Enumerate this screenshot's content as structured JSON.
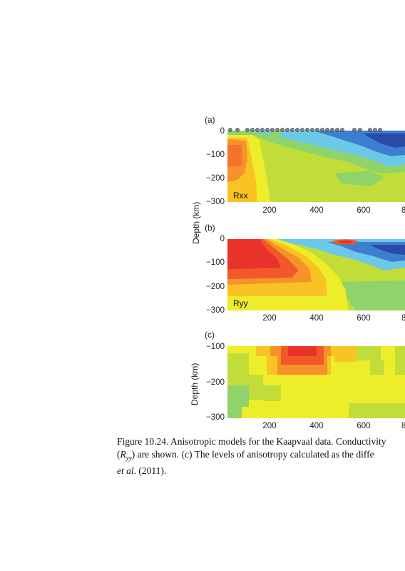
{
  "panels": [
    {
      "label": "(a)",
      "inner_label": "Rxx",
      "y_ticks": [
        "0",
        "−100",
        "−200",
        "−300"
      ],
      "x_ticks": [
        "200",
        "400",
        "600",
        "8"
      ]
    },
    {
      "label": "(b)",
      "inner_label": "Ryy",
      "y_ticks": [
        "0",
        "−100",
        "−200",
        "−300"
      ],
      "x_ticks": [
        "200",
        "400",
        "600",
        "8"
      ]
    },
    {
      "label": "(c)",
      "inner_label": "",
      "y_ticks": [
        "−100",
        "−200",
        "−300"
      ],
      "x_ticks": [
        "200",
        "400",
        "600",
        "8"
      ]
    }
  ],
  "ylabel": "Depth (km)",
  "caption": {
    "line1": "Figure 10.24.  Anisotropic models for the Kaapvaal data. Conductivity",
    "line2_pre": "(",
    "line2_italic": "R",
    "line2_sub": "yy",
    "line2_post": ") are shown. (c) The levels of anisotropy calculated as the diffe",
    "line3_italic": "et al",
    "line3_post": ". (2011)."
  },
  "colors": {
    "red": "#e8322a",
    "orange_red": "#f2582a",
    "orange": "#f5922a",
    "yellow_orange": "#f9c423",
    "yellow": "#eded2a",
    "yellow_green": "#c2dc3a",
    "green": "#8ed46a",
    "light_blue": "#6cc8e8",
    "blue": "#3e7ed0",
    "dark_blue": "#2a4aa8"
  }
}
